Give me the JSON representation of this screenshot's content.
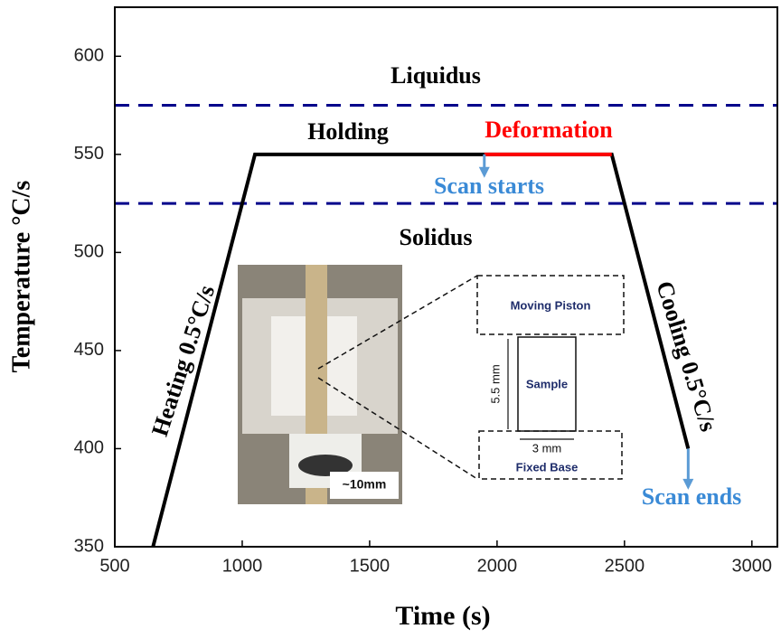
{
  "chart_data": {
    "type": "line",
    "x_label": "Time (s)",
    "y_label": "Temperature °C/s",
    "xlim": [
      500,
      3100
    ],
    "xticks": [
      500,
      1000,
      1500,
      2000,
      2500,
      3000
    ],
    "ylim": [
      350,
      625
    ],
    "yticks": [
      350,
      400,
      450,
      500,
      550,
      600
    ],
    "series": [
      {
        "color": "#000000",
        "x": [
          650,
          1050,
          1950,
          2450,
          2750
        ],
        "values": [
          350,
          550,
          550,
          550,
          400
        ]
      },
      {
        "color": "#ff0000",
        "x": [
          1950,
          2450
        ],
        "values": [
          550,
          550
        ]
      }
    ],
    "reference_lines": [
      {
        "value": 575,
        "color": "#00008b"
      },
      {
        "value": 525,
        "color": "#00008b"
      }
    ],
    "arrows": [
      {
        "x": 1950,
        "from": 550,
        "to": 539,
        "color": "#5b9bd5"
      },
      {
        "x": 2750,
        "from": 400,
        "to": 380,
        "color": "#5b9bd5"
      }
    ],
    "annotations": [
      {
        "text": "Liquidus",
        "color": "#000000"
      },
      {
        "text": "Holding",
        "color": "#000000"
      },
      {
        "text": "Deformation",
        "color": "#ff0000"
      },
      {
        "text": "Scan starts",
        "color": "#3a8ad6"
      },
      {
        "text": "Solidus",
        "color": "#000000"
      },
      {
        "text": "Heating 0.5°C/s",
        "color": "#000000"
      },
      {
        "text": "Cooling 0.5°C/s",
        "color": "#000000"
      },
      {
        "text": "Scan ends",
        "color": "#3a8ad6"
      }
    ],
    "inset": {
      "scale_label": "~10mm",
      "schematic": {
        "top": "Moving Piston",
        "middle": "Sample",
        "height": "5.5 mm",
        "width": "3 mm",
        "bottom": "Fixed Base"
      }
    }
  }
}
